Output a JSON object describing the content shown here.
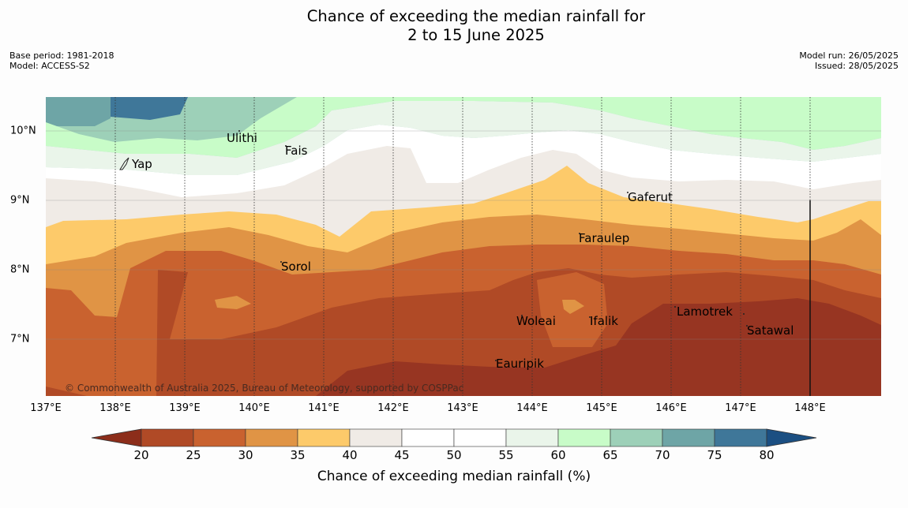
{
  "title_line1": "Chance of exceeding the median rainfall for",
  "title_line2": "2 to 15 June 2025",
  "meta_left": {
    "base_period": "Base period: 1981-2018",
    "model": "Model: ACCESS-S2"
  },
  "meta_right": {
    "model_run": "Model run: 26/05/2025",
    "issued": "Issued: 28/05/2025"
  },
  "lon_labels": [
    "137°E",
    "138°E",
    "139°E",
    "140°E",
    "141°E",
    "142°E",
    "143°E",
    "144°E",
    "145°E",
    "146°E",
    "147°E",
    "148°E"
  ],
  "lat_labels": [
    "10°N",
    "9°N",
    "8°N",
    "7°N"
  ],
  "places": {
    "ulithi": "Ulithi",
    "fais": "Fais",
    "yap": "Yap",
    "gaferut": "Gaferut",
    "faraulep": "Faraulep",
    "sorol": "Sorol",
    "woleai": "Woleai",
    "ifalik": "Ifalik",
    "lamotrek": "Lamotrek",
    "satawal": "Satawal",
    "eauripik": "Eauripik"
  },
  "credit": "© Commonwealth of Australia 2025, Bureau of Meteorology, supported by COSPPac",
  "colorbar": {
    "ticks": [
      "20",
      "25",
      "30",
      "35",
      "40",
      "45",
      "50",
      "55",
      "60",
      "65",
      "70",
      "75",
      "80"
    ],
    "label": "Chance of exceeding median rainfall (%)",
    "colors": [
      "#8c2d1a",
      "#b04a26",
      "#c9622f",
      "#e09445",
      "#fdca6a",
      "#f0ebe6",
      "#ffffff",
      "#ffffff",
      "#eaf5ea",
      "#c8fcc8",
      "#9dd0b8",
      "#6ea5a6",
      "#3f7799",
      "#1b4f82"
    ]
  }
}
